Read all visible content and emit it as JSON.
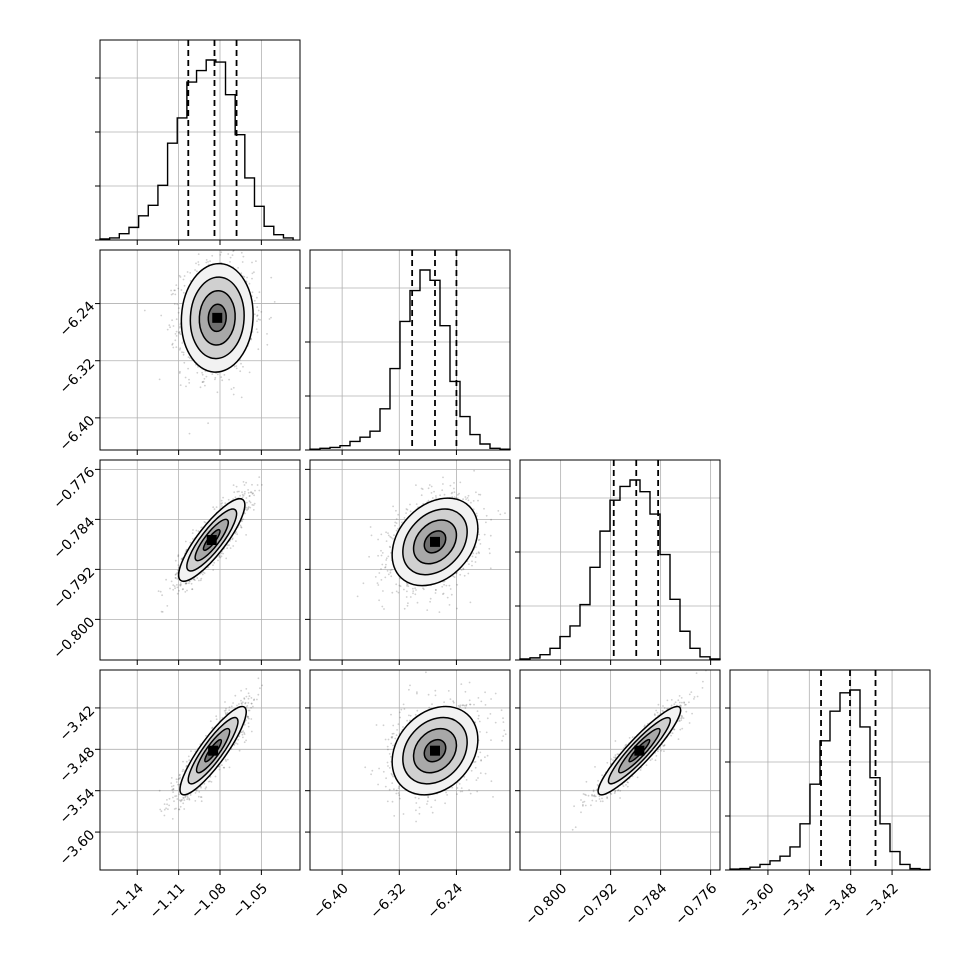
{
  "chart_data": {
    "type": "corner",
    "n_params": 4,
    "grid": true,
    "params": [
      {
        "name": "",
        "range": [
          -1.167,
          -1.022
        ],
        "ticks": [
          "−1.14",
          "−1.11",
          "−1.08",
          "−1.05"
        ],
        "tick_values": [
          -1.14,
          -1.11,
          -1.08,
          -1.05
        ],
        "quantiles": [
          -1.103,
          -1.084,
          -1.068
        ],
        "hist_bin_edges": [
          -1.167,
          -1.16,
          -1.153,
          -1.146,
          -1.139,
          -1.132,
          -1.125,
          -1.118,
          -1.111,
          -1.104,
          -1.097,
          -1.09,
          -1.083,
          -1.076,
          -1.069,
          -1.062,
          -1.055,
          -1.048,
          -1.041,
          -1.034,
          -1.027
        ],
        "hist_counts": [
          2,
          4,
          12,
          24,
          46,
          66,
          104,
          184,
          232,
          300,
          322,
          342,
          338,
          276,
          200,
          118,
          64,
          26,
          10,
          4
        ]
      },
      {
        "name": "",
        "range": [
          -6.445,
          -6.165
        ],
        "ticks": [
          "−6.40",
          "−6.32",
          "−6.24"
        ],
        "tick_values": [
          -6.4,
          -6.32,
          -6.24
        ],
        "quantiles": [
          -6.302,
          -6.27,
          -6.24
        ],
        "hist_bin_edges": [
          -6.445,
          -6.431,
          -6.417,
          -6.403,
          -6.389,
          -6.375,
          -6.361,
          -6.347,
          -6.333,
          -6.319,
          -6.305,
          -6.291,
          -6.277,
          -6.263,
          -6.249,
          -6.235,
          -6.221,
          -6.207,
          -6.193,
          -6.179,
          -6.165
        ],
        "hist_counts": [
          2,
          4,
          6,
          10,
          20,
          30,
          44,
          96,
          190,
          300,
          372,
          420,
          396,
          290,
          160,
          78,
          36,
          14,
          4,
          2
        ]
      },
      {
        "name": "",
        "range": [
          -0.8065,
          -0.7745
        ],
        "ticks": [
          "−0.800",
          "−0.792",
          "−0.784",
          "−0.776"
        ],
        "tick_values": [
          -0.8,
          -0.792,
          -0.784,
          -0.776
        ],
        "quantiles": [
          -0.7915,
          -0.7879,
          -0.7844
        ],
        "hist_bin_edges": [
          -0.8065,
          -0.8049,
          -0.8033,
          -0.8017,
          -0.8001,
          -0.7985,
          -0.7969,
          -0.7953,
          -0.7937,
          -0.7921,
          -0.7905,
          -0.7889,
          -0.7873,
          -0.7857,
          -0.7841,
          -0.7825,
          -0.7809,
          -0.7793,
          -0.7777,
          -0.7761,
          -0.7745
        ],
        "hist_counts": [
          2,
          4,
          10,
          22,
          44,
          64,
          104,
          174,
          242,
          300,
          326,
          338,
          316,
          274,
          198,
          114,
          54,
          22,
          6,
          2
        ]
      },
      {
        "name": "",
        "range": [
          -3.655,
          -3.365
        ],
        "ticks": [
          "−3.60",
          "−3.54",
          "−3.48",
          "−3.42"
        ],
        "tick_values": [
          -3.6,
          -3.54,
          -3.48,
          -3.42
        ],
        "quantiles": [
          -3.523,
          -3.481,
          -3.444
        ],
        "hist_bin_edges": [
          -3.655,
          -3.6405,
          -3.626,
          -3.6115,
          -3.597,
          -3.5825,
          -3.568,
          -3.5535,
          -3.539,
          -3.5245,
          -3.51,
          -3.4955,
          -3.481,
          -3.4665,
          -3.452,
          -3.4375,
          -3.423,
          -3.4085,
          -3.394,
          -3.3795,
          -3.365
        ],
        "hist_counts": [
          2,
          3,
          6,
          12,
          20,
          30,
          50,
          100,
          186,
          280,
          344,
          384,
          390,
          310,
          200,
          100,
          40,
          12,
          3,
          1
        ]
      }
    ],
    "pairs": [
      {
        "x": 0,
        "y": 1,
        "center": [
          -1.082,
          -6.26
        ],
        "sigma": [
          0.013,
          0.038
        ],
        "corr": 0.05
      },
      {
        "x": 0,
        "y": 2,
        "center": [
          -1.086,
          -0.7873
        ],
        "sigma": [
          0.012,
          0.0033
        ],
        "corr": 0.85
      },
      {
        "x": 1,
        "y": 2,
        "center": [
          -6.27,
          -0.7876
        ],
        "sigma": [
          0.03,
          0.0035
        ],
        "corr": 0.3
      },
      {
        "x": 0,
        "y": 3,
        "center": [
          -1.085,
          -3.482
        ],
        "sigma": [
          0.012,
          0.032
        ],
        "corr": 0.88
      },
      {
        "x": 1,
        "y": 3,
        "center": [
          -6.27,
          -3.482
        ],
        "sigma": [
          0.03,
          0.032
        ],
        "corr": 0.25
      },
      {
        "x": 2,
        "y": 3,
        "center": [
          -0.7874,
          -3.482
        ],
        "sigma": [
          0.0033,
          0.032
        ],
        "corr": 0.92
      }
    ],
    "contour_levels_sigma": [
      0.5,
      1.0,
      1.5,
      2.0
    ]
  }
}
